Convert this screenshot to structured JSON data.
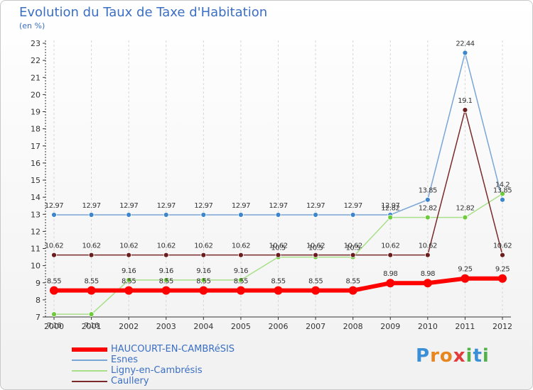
{
  "header": {
    "title": "Evolution du Taux de Taxe d'Habitation",
    "subtitle": "(en %)"
  },
  "logo": {
    "text": "Proxiti"
  },
  "chart_data": {
    "type": "line",
    "title": "Evolution du Taux de Taxe d'Habitation",
    "ylabel": "(en %)",
    "xlabel": "",
    "x": [
      "2000",
      "2001",
      "2002",
      "2003",
      "2004",
      "2005",
      "2006",
      "2007",
      "2008",
      "2009",
      "2010",
      "2011",
      "2012"
    ],
    "ylim": [
      7,
      23
    ],
    "yticks": [
      7,
      8,
      9,
      10,
      11,
      12,
      13,
      14,
      15,
      16,
      17,
      18,
      19,
      20,
      21,
      22,
      23
    ],
    "grid": "vertical dashed",
    "legend_position": "bottom-left",
    "series": [
      {
        "name": "HAUCOURT-EN-CAMBRéSIS",
        "color": "#ff0000",
        "values": [
          8.55,
          8.55,
          8.55,
          8.55,
          8.55,
          8.55,
          8.55,
          8.55,
          8.55,
          8.98,
          8.98,
          9.25,
          9.25
        ],
        "labels": [
          "8.55",
          "8.55",
          "8.55",
          "8.55",
          "8.55",
          "8.55",
          "8.55",
          "8.55",
          "8.55",
          "8.98",
          "8.98",
          "9.25",
          "9.25"
        ]
      },
      {
        "name": "Esnes",
        "color": "#7aa6d6",
        "marker": "#3e86cc",
        "values": [
          12.97,
          12.97,
          12.97,
          12.97,
          12.97,
          12.97,
          12.97,
          12.97,
          12.97,
          12.97,
          13.85,
          22.44,
          13.85
        ],
        "labels": [
          "12.97",
          "12.97",
          "12.97",
          "12.97",
          "12.97",
          "12.97",
          "12.97",
          "12.97",
          "12.97",
          "12.97",
          "13.85",
          "22.44",
          "13.85"
        ]
      },
      {
        "name": "Ligny-en-Cambrésis",
        "color": "#a8e08a",
        "marker": "#6ecb3c",
        "values": [
          7.16,
          7.16,
          9.16,
          9.16,
          9.16,
          9.16,
          10.5,
          10.5,
          10.5,
          12.82,
          12.82,
          12.82,
          14.2
        ],
        "labels": [
          "7.16",
          "7.16",
          "9.16",
          "9.16",
          "9.16",
          "9.16",
          "10.5",
          "10.5",
          "10.5",
          "12.82",
          "12.82",
          "12.82",
          "14.2"
        ]
      },
      {
        "name": "Caullery",
        "color": "#7a2a2a",
        "marker": "#6b1d1d",
        "values": [
          10.62,
          10.62,
          10.62,
          10.62,
          10.62,
          10.62,
          10.62,
          10.62,
          10.62,
          10.62,
          10.62,
          19.1,
          10.62
        ],
        "labels": [
          "10.62",
          "10.62",
          "10.62",
          "10.62",
          "10.62",
          "10.62",
          "10.62",
          "10.62",
          "10.62",
          "10.62",
          "10.62",
          "19.1",
          "10.62"
        ]
      }
    ]
  }
}
